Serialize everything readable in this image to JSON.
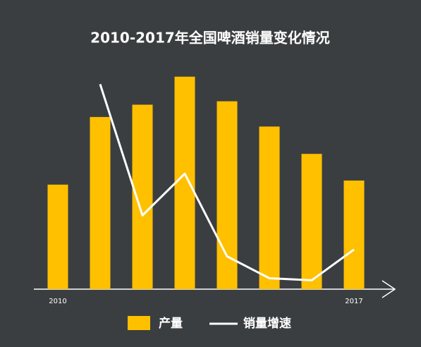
{
  "chart_data": {
    "type": "bar_line",
    "title": "2010-2017年全国啤酒销量变化情况",
    "categories": [
      "2010",
      null,
      null,
      null,
      null,
      null,
      null,
      "2017"
    ],
    "series": [
      {
        "name": "产量",
        "type": "bar",
        "color": "#ffc000",
        "values": [
          153,
          252,
          270,
          311,
          275,
          238,
          198,
          159
        ]
      },
      {
        "name": "销量增速",
        "type": "line",
        "axis": "y2",
        "color": "#ffffff",
        "values": [
          null,
          300,
          108,
          169,
          48,
          16,
          13,
          58
        ]
      }
    ],
    "ylim": [
      0,
      320
    ],
    "y2lim": [
      0,
      320
    ],
    "legend": "bottom"
  }
}
